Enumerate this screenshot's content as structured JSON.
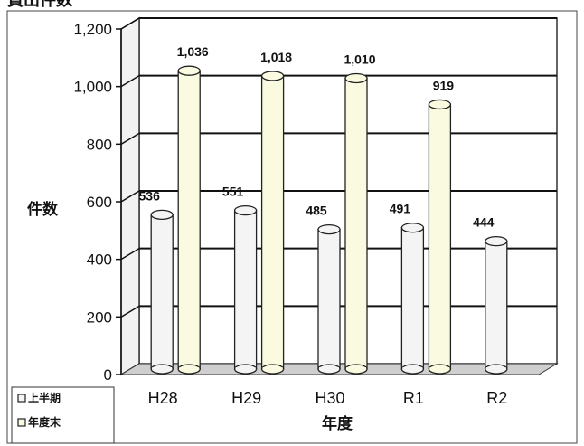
{
  "chart_data": {
    "type": "bar",
    "title": "貸出件数",
    "xlabel": "年度",
    "ylabel": "件数",
    "categories": [
      "H28",
      "H29",
      "H30",
      "R1",
      "R2"
    ],
    "series": [
      {
        "name": "上半期",
        "values": [
          536,
          551,
          485,
          491,
          444
        ],
        "color": "#f4f4f4"
      },
      {
        "name": "年度末",
        "values": [
          1036,
          1018,
          1010,
          919,
          null
        ],
        "color": "#fafae0"
      }
    ],
    "data_labels": [
      [
        "536",
        "551",
        "485",
        "491",
        "444"
      ],
      [
        "1,036",
        "1,018",
        "1,010",
        "919",
        ""
      ]
    ],
    "ylim": [
      0,
      1200
    ],
    "yticks": [
      0,
      200,
      400,
      600,
      800,
      1000,
      1200
    ],
    "ytick_labels": [
      "0",
      "200",
      "400",
      "600",
      "800",
      "1,000",
      "1,200"
    ],
    "grid": true,
    "legend_position": "bottom-left",
    "style": "3d-cylinder"
  }
}
